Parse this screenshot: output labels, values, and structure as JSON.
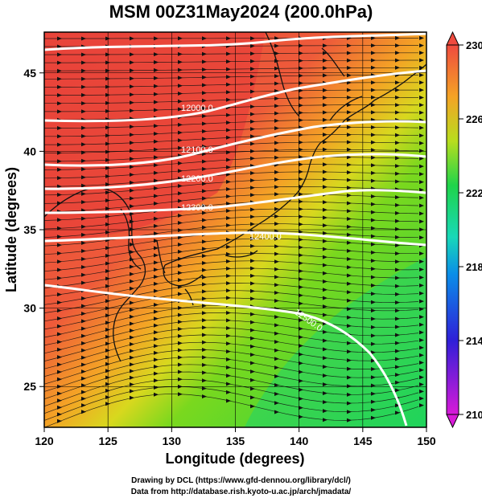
{
  "title": "MSM 00Z31May2024 (200.0hPa)",
  "axes": {
    "xlabel": "Longitude (degrees)",
    "ylabel": "Latitude  (degrees)",
    "x_ticks": [
      "120",
      "125",
      "130",
      "135",
      "140",
      "145",
      "150"
    ],
    "y_ticks": [
      "25",
      "30",
      "35",
      "40",
      "45"
    ],
    "xlim": [
      120,
      150
    ],
    "ylim": [
      22.4,
      47.6
    ]
  },
  "colorbar": {
    "ticks": [
      "230",
      "226",
      "222",
      "218",
      "214",
      "210"
    ],
    "range": [
      210,
      230
    ],
    "colors": [
      "#d81ad8",
      "#2f1fd8",
      "#0a8ee8",
      "#18d8b8",
      "#1fd44a",
      "#b8dd1e",
      "#f4a325",
      "#ef4b3f"
    ]
  },
  "contours": {
    "labels": [
      "12000.0",
      "12100.0",
      "12200.0",
      "12300.0",
      "12400.0",
      "12500.0"
    ],
    "color": "#ffffff"
  },
  "credits": {
    "line1": "Drawing by DCL (https://www.gfd-dennou.org/library/dcl/)",
    "line2": "Data from http://database.rish.kyoto-u.ac.jp/arch/jmadata/"
  }
}
